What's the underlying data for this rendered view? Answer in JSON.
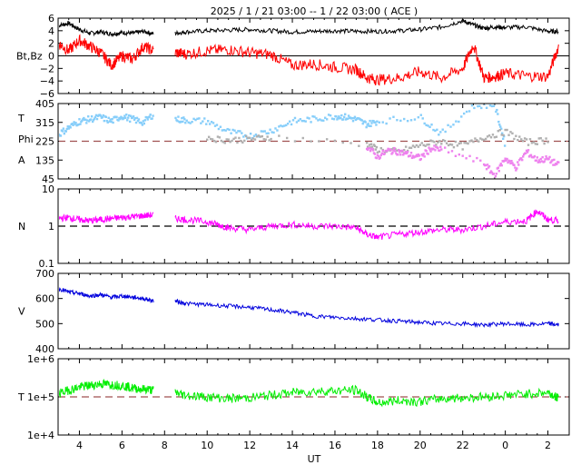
{
  "title": "2025 /  1 / 21   03:00 -- 1 / 22   03:00 ( ACE )",
  "xlabel": "UT",
  "x_ticks": [
    "4",
    "6",
    "8",
    "10",
    "12",
    "14",
    "16",
    "18",
    "20",
    "22",
    "0",
    "2"
  ],
  "colors": {
    "bt": "#000000",
    "bz": "#ff0000",
    "theta": "#87cefa",
    "phi_gray": "#b0b0b0",
    "phi_violet": "#ee82ee",
    "density": "#ff00ff",
    "speed": "#0000dd",
    "temperature": "#00ee00",
    "ref_dashed_red": "#a05050",
    "ref_dashed_black": "#000000"
  },
  "chart_data": [
    {
      "type": "line",
      "panel": "magnetic-field",
      "ylabel": "Bt,Bz",
      "ylim": [
        -6,
        6
      ],
      "yticks": [
        "6",
        "4",
        "2",
        "0",
        "−2",
        "−4",
        "−6"
      ],
      "reference_line": 0,
      "gap": [
        7.5,
        8.5
      ],
      "series": [
        {
          "name": "Bt",
          "x": [
            3,
            3.5,
            4,
            4.5,
            5,
            5.5,
            6,
            6.5,
            7,
            7.5,
            8.5,
            9,
            10,
            11,
            12,
            13,
            14,
            15,
            16,
            17,
            18,
            19,
            20,
            21,
            22,
            22.5,
            23,
            23.5,
            24,
            25,
            26,
            26.5
          ],
          "values": [
            4.8,
            5.2,
            4.2,
            3.6,
            3.8,
            3.5,
            3.7,
            3.6,
            3.9,
            3.5,
            3.6,
            3.8,
            4.0,
            4.1,
            4.2,
            4.0,
            3.8,
            3.9,
            4.0,
            3.9,
            3.9,
            4.0,
            4.2,
            4.6,
            5.6,
            4.9,
            4.4,
            4.6,
            4.5,
            4.6,
            3.9,
            3.9
          ]
        },
        {
          "name": "Bz",
          "x": [
            3,
            3.5,
            4,
            4.5,
            5,
            5.5,
            6,
            6.5,
            7,
            7.5,
            8.5,
            9,
            10,
            11,
            12,
            13,
            14,
            15,
            16,
            17,
            17.5,
            18,
            19,
            20,
            21,
            22,
            22.5,
            23,
            23.5,
            24,
            25,
            26,
            26.5
          ],
          "values": [
            2.0,
            0.8,
            2.5,
            1.5,
            0.5,
            -1.5,
            0.0,
            -0.5,
            1.5,
            0.8,
            0.5,
            0.3,
            0.8,
            1.0,
            0.5,
            0.2,
            -1.5,
            -1.3,
            -1.8,
            -2.2,
            -3.5,
            -3.8,
            -3.5,
            -2.5,
            -3.5,
            -2.0,
            1.8,
            -3.5,
            -3.3,
            -2.8,
            -3.2,
            -3.3,
            1.5
          ]
        }
      ]
    },
    {
      "type": "scatter",
      "panel": "field-angles",
      "ylabel": [
        "T",
        "Phi",
        "A"
      ],
      "ylim": [
        45,
        405
      ],
      "yticks": [
        "405",
        "315",
        "225",
        "135",
        "45"
      ],
      "reference_line": 225,
      "gap": [
        7.5,
        8.5
      ],
      "series": [
        {
          "name": "T",
          "x": [
            3,
            3.5,
            4,
            4.5,
            5,
            5.5,
            6,
            6.5,
            7,
            7.5,
            8.5,
            9,
            10,
            11,
            12,
            13,
            14,
            15,
            16,
            16.5,
            17,
            17.5,
            18,
            20,
            21,
            22.5,
            23.5,
            24
          ],
          "values": [
            255,
            290,
            320,
            330,
            340,
            320,
            345,
            330,
            315,
            355,
            330,
            325,
            320,
            270,
            250,
            275,
            320,
            330,
            345,
            340,
            330,
            305,
            320,
            340,
            260,
            395,
            400,
            210
          ]
        },
        {
          "name": "Phi",
          "x": [
            10,
            11,
            12,
            13,
            17.5,
            18,
            19,
            20,
            21,
            22,
            23,
            24,
            25,
            26
          ],
          "values": [
            240,
            230,
            235,
            245,
            210,
            185,
            175,
            205,
            225,
            200,
            245,
            270,
            220,
            230
          ]
        },
        {
          "name": "A",
          "x": [
            17.5,
            18,
            18.5,
            19,
            19.5,
            20,
            20.5,
            21,
            23,
            23.5,
            24,
            24.5,
            25,
            25.5,
            26,
            26.5
          ],
          "values": [
            200,
            150,
            180,
            175,
            160,
            145,
            190,
            185,
            120,
            60,
            145,
            100,
            175,
            135,
            140,
            110
          ]
        }
      ]
    },
    {
      "type": "line",
      "panel": "density",
      "ylabel": "N",
      "yscale": "log",
      "ylim": [
        0.1,
        10
      ],
      "yticks": [
        "10",
        "1",
        "0.1"
      ],
      "reference_line": 1,
      "gap": [
        7.5,
        8.5
      ],
      "series": [
        {
          "name": "N",
          "x": [
            3,
            3.5,
            4,
            4.5,
            5,
            5.5,
            6,
            6.5,
            7,
            7.5,
            8.5,
            9,
            10,
            10.5,
            11,
            12,
            13,
            14,
            15,
            16,
            17,
            17.5,
            18,
            19,
            20,
            21,
            22,
            23,
            24,
            25,
            25.5,
            26,
            26.5
          ],
          "values": [
            1.6,
            1.7,
            1.5,
            1.4,
            1.5,
            1.6,
            1.7,
            1.8,
            1.9,
            2.0,
            1.6,
            1.5,
            1.3,
            1.1,
            0.9,
            0.8,
            1.0,
            1.1,
            1.0,
            1.0,
            0.9,
            0.6,
            0.5,
            0.6,
            0.7,
            0.8,
            0.8,
            1.0,
            1.3,
            1.4,
            2.6,
            1.5,
            1.4
          ]
        }
      ]
    },
    {
      "type": "line",
      "panel": "speed",
      "ylabel": "V",
      "ylim": [
        400,
        700
      ],
      "yticks": [
        "700",
        "600",
        "500",
        "400"
      ],
      "gap": [
        7.5,
        8.5
      ],
      "series": [
        {
          "name": "V",
          "x": [
            3,
            3.5,
            4,
            4.5,
            5,
            5.5,
            6,
            6.5,
            7,
            7.5,
            8.5,
            9,
            10,
            11,
            12,
            13,
            14,
            15,
            16,
            17,
            18,
            19,
            20,
            21,
            22,
            23,
            24,
            25,
            26,
            26.5
          ],
          "values": [
            640,
            625,
            620,
            610,
            615,
            605,
            610,
            605,
            600,
            590,
            590,
            580,
            575,
            570,
            565,
            555,
            545,
            530,
            525,
            520,
            515,
            510,
            505,
            500,
            500,
            495,
            500,
            495,
            500,
            495
          ]
        }
      ]
    },
    {
      "type": "line",
      "panel": "temperature",
      "ylabel": "T",
      "yscale": "log",
      "ylim": [
        10000,
        1000000
      ],
      "yticks": [
        "1e+6",
        "1e+5",
        "1e+4"
      ],
      "reference_line": 100000,
      "gap": [
        7.5,
        8.5
      ],
      "series": [
        {
          "name": "T",
          "x": [
            3,
            3.5,
            4,
            4.5,
            5,
            5.5,
            6,
            6.5,
            7,
            7.5,
            8.5,
            9,
            10,
            11,
            12,
            13,
            14,
            15,
            16,
            17,
            17.5,
            18,
            19,
            20,
            21,
            22,
            23,
            24,
            25,
            26,
            26.5
          ],
          "values": [
            120000,
            150000,
            180000,
            200000,
            220000,
            210000,
            200000,
            170000,
            160000,
            150000,
            130000,
            110000,
            100000,
            90000,
            95000,
            110000,
            130000,
            140000,
            145000,
            150000,
            100000,
            70000,
            80000,
            75000,
            90000,
            95000,
            100000,
            110000,
            120000,
            130000,
            90000
          ]
        }
      ]
    }
  ]
}
